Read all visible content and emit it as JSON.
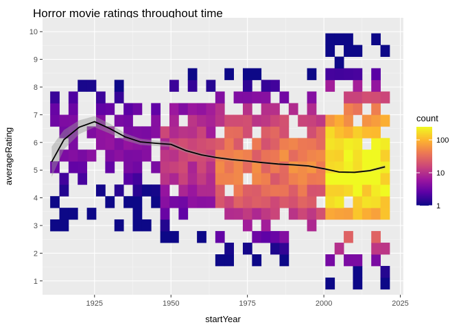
{
  "chart_data": {
    "type": "heatmap",
    "title": "Horror movie ratings throughout time",
    "xlabel": "startYear",
    "ylabel": "averageRating",
    "xlim": [
      1908,
      2026
    ],
    "ylim": [
      0.5,
      10.5
    ],
    "x_ticks": [
      1925,
      1950,
      1975,
      2000,
      2025
    ],
    "y_ticks": [
      1,
      2,
      3,
      4,
      5,
      6,
      7,
      8,
      9,
      10
    ],
    "bin_width_years": 3,
    "bin_height_rating": 0.42,
    "legend": {
      "title": "count",
      "scale": "log10",
      "ticks": [
        1,
        10,
        100
      ],
      "range": [
        1,
        250
      ],
      "colors": [
        "#0d0887",
        "#5d01a6",
        "#9c179e",
        "#cc4778",
        "#ed7953",
        "#fdb42f",
        "#f0f921"
      ]
    },
    "density_bands": [
      {
        "x_range": [
          1910,
          1948
        ],
        "y_range": [
          3.0,
          8.1
        ],
        "y_center": 6.1,
        "peak_count": 4
      },
      {
        "x_range": [
          1948,
          1965
        ],
        "y_range": [
          2.2,
          8.5
        ],
        "y_center": 5.6,
        "peak_count": 15
      },
      {
        "x_range": [
          1965,
          1985
        ],
        "y_range": [
          1.4,
          8.6
        ],
        "y_center": 5.2,
        "peak_count": 40
      },
      {
        "x_range": [
          1985,
          2000
        ],
        "y_range": [
          1.4,
          8.6
        ],
        "y_center": 5.1,
        "peak_count": 45
      },
      {
        "x_range": [
          2000,
          2021
        ],
        "y_range": [
          0.9,
          9.8
        ],
        "y_center": 5.0,
        "peak_count": 250
      }
    ],
    "smooth_line": {
      "x": [
        1911,
        1915,
        1920,
        1925,
        1930,
        1935,
        1940,
        1945,
        1950,
        1955,
        1960,
        1965,
        1970,
        1975,
        1980,
        1985,
        1990,
        1995,
        2000,
        2005,
        2010,
        2015,
        2020
      ],
      "y": [
        5.3,
        6.1,
        6.55,
        6.75,
        6.5,
        6.2,
        6.02,
        5.97,
        5.93,
        5.7,
        5.55,
        5.45,
        5.38,
        5.33,
        5.27,
        5.22,
        5.19,
        5.15,
        5.05,
        4.93,
        4.92,
        4.98,
        5.12
      ],
      "se": [
        0.55,
        0.35,
        0.25,
        0.2,
        0.18,
        0.13,
        0.11,
        0.1,
        0.09,
        0.07,
        0.06,
        0.05,
        0.05,
        0.04,
        0.04,
        0.04,
        0.04,
        0.04,
        0.04,
        0.03,
        0.03,
        0.04,
        0.06
      ]
    }
  }
}
